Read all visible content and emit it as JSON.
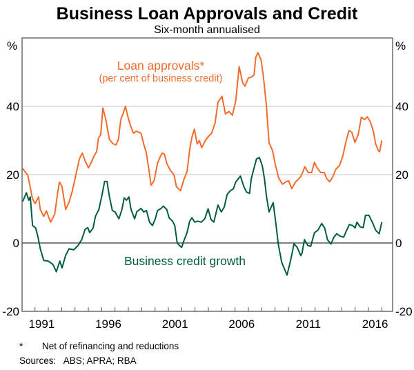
{
  "chart_data": {
    "type": "line",
    "title": "Business Loan Approvals and Credit",
    "subtitle": "Six-month annualised",
    "y_unit_left": "%",
    "y_unit_right": "%",
    "ylim": [
      -20,
      60
    ],
    "yticks": [
      -20,
      0,
      20,
      40
    ],
    "xlim": [
      1990,
      2017.8
    ],
    "xtick_labels": [
      "1991",
      "1996",
      "2001",
      "2006",
      "2011",
      "2016"
    ],
    "grid": true,
    "footnote_marker": "*",
    "footnote": "Net of refinancing and reductions",
    "sources": "Sources:   ABS; APRA; RBA",
    "series": [
      {
        "name": "Loan approvals*",
        "name_sub": "(per cent of business credit)",
        "color": "#f26b2b",
        "points": [
          [
            1990.07,
            21.8
          ],
          [
            1990.45,
            19.9
          ],
          [
            1990.6,
            17.2
          ],
          [
            1990.8,
            13.2
          ],
          [
            1991.0,
            11.5
          ],
          [
            1991.27,
            13.5
          ],
          [
            1991.4,
            9.8
          ],
          [
            1991.65,
            7.8
          ],
          [
            1991.86,
            9.4
          ],
          [
            1992.17,
            6.1
          ],
          [
            1992.48,
            8.4
          ],
          [
            1992.69,
            14.5
          ],
          [
            1992.83,
            17.8
          ],
          [
            1993.03,
            16.5
          ],
          [
            1993.3,
            9.8
          ],
          [
            1993.55,
            11.9
          ],
          [
            1993.8,
            15.2
          ],
          [
            1994.07,
            20.0
          ],
          [
            1994.33,
            24.6
          ],
          [
            1994.55,
            26.3
          ],
          [
            1994.76,
            24.0
          ],
          [
            1995.01,
            22.0
          ],
          [
            1995.19,
            23.3
          ],
          [
            1995.41,
            25.3
          ],
          [
            1995.62,
            26.7
          ],
          [
            1995.76,
            30.7
          ],
          [
            1995.93,
            31.7
          ],
          [
            1996.09,
            39.5
          ],
          [
            1996.31,
            36.2
          ],
          [
            1996.57,
            30.4
          ],
          [
            1996.83,
            29.1
          ],
          [
            1997.08,
            28.7
          ],
          [
            1997.26,
            30.4
          ],
          [
            1997.43,
            36.1
          ],
          [
            1997.6,
            37.8
          ],
          [
            1997.78,
            40.0
          ],
          [
            1997.98,
            36.8
          ],
          [
            1998.16,
            34.4
          ],
          [
            1998.38,
            32.1
          ],
          [
            1998.6,
            32.7
          ],
          [
            1998.95,
            32.1
          ],
          [
            1999.15,
            29.0
          ],
          [
            1999.33,
            26.7
          ],
          [
            1999.5,
            22.6
          ],
          [
            1999.7,
            16.9
          ],
          [
            1999.93,
            18.2
          ],
          [
            2000.19,
            23.3
          ],
          [
            2000.36,
            25.0
          ],
          [
            2000.53,
            26.3
          ],
          [
            2000.71,
            26.0
          ],
          [
            2000.88,
            23.3
          ],
          [
            2001.14,
            21.3
          ],
          [
            2001.43,
            19.9
          ],
          [
            2001.6,
            16.5
          ],
          [
            2001.91,
            15.3
          ],
          [
            2002.17,
            18.6
          ],
          [
            2002.4,
            20.9
          ],
          [
            2002.6,
            27.3
          ],
          [
            2002.77,
            31.0
          ],
          [
            2002.95,
            33.3
          ],
          [
            2003.16,
            29.0
          ],
          [
            2003.33,
            30.0
          ],
          [
            2003.5,
            27.9
          ],
          [
            2003.78,
            30.0
          ],
          [
            2004.0,
            31.2
          ],
          [
            2004.24,
            32.1
          ],
          [
            2004.5,
            35.1
          ],
          [
            2004.72,
            41.2
          ],
          [
            2005.02,
            42.9
          ],
          [
            2005.28,
            37.8
          ],
          [
            2005.54,
            38.5
          ],
          [
            2005.8,
            37.4
          ],
          [
            2006.05,
            41.5
          ],
          [
            2006.31,
            51.6
          ],
          [
            2006.57,
            46.9
          ],
          [
            2006.74,
            45.9
          ],
          [
            2007.0,
            48.3
          ],
          [
            2007.26,
            48.6
          ],
          [
            2007.43,
            49.3
          ],
          [
            2007.55,
            54.3
          ],
          [
            2007.72,
            55.7
          ],
          [
            2007.95,
            53.6
          ],
          [
            2008.12,
            48.9
          ],
          [
            2008.35,
            40.2
          ],
          [
            2008.55,
            29.4
          ],
          [
            2008.81,
            27.0
          ],
          [
            2009.04,
            22.6
          ],
          [
            2009.28,
            18.9
          ],
          [
            2009.55,
            17.2
          ],
          [
            2009.85,
            18.0
          ],
          [
            2010.02,
            18.2
          ],
          [
            2010.25,
            15.9
          ],
          [
            2010.54,
            17.9
          ],
          [
            2010.89,
            19.2
          ],
          [
            2011.1,
            20.9
          ],
          [
            2011.23,
            22.3
          ],
          [
            2011.49,
            20.6
          ],
          [
            2011.74,
            20.6
          ],
          [
            2011.95,
            23.6
          ],
          [
            2012.17,
            21.9
          ],
          [
            2012.43,
            20.6
          ],
          [
            2012.69,
            20.6
          ],
          [
            2012.86,
            18.9
          ],
          [
            2013.09,
            17.9
          ],
          [
            2013.3,
            19.2
          ],
          [
            2013.56,
            21.6
          ],
          [
            2013.82,
            22.6
          ],
          [
            2014.07,
            25.3
          ],
          [
            2014.3,
            29.4
          ],
          [
            2014.54,
            32.9
          ],
          [
            2014.76,
            32.4
          ],
          [
            2014.99,
            29.4
          ],
          [
            2015.23,
            31.7
          ],
          [
            2015.47,
            36.8
          ],
          [
            2015.71,
            36.1
          ],
          [
            2015.92,
            36.9
          ],
          [
            2016.15,
            35.4
          ],
          [
            2016.37,
            32.7
          ],
          [
            2016.54,
            29.0
          ],
          [
            2016.75,
            27.0
          ],
          [
            2016.84,
            26.7
          ],
          [
            2017.0,
            30.0
          ]
        ]
      },
      {
        "name": "Business credit growth",
        "color": "#005b45",
        "points": [
          [
            1990.07,
            12.1
          ],
          [
            1990.36,
            14.7
          ],
          [
            1990.53,
            12.5
          ],
          [
            1990.65,
            13.5
          ],
          [
            1990.82,
            5.1
          ],
          [
            1991.05,
            4.4
          ],
          [
            1991.22,
            1.8
          ],
          [
            1991.4,
            -1.7
          ],
          [
            1991.65,
            -5.1
          ],
          [
            1992.0,
            -5.3
          ],
          [
            1992.35,
            -6.3
          ],
          [
            1992.6,
            -8.4
          ],
          [
            1992.86,
            -5.3
          ],
          [
            1993.03,
            -7.3
          ],
          [
            1993.29,
            -3.7
          ],
          [
            1993.55,
            -1.7
          ],
          [
            1993.9,
            -2.0
          ],
          [
            1994.24,
            -0.7
          ],
          [
            1994.5,
            1.0
          ],
          [
            1994.76,
            4.0
          ],
          [
            1994.96,
            4.5
          ],
          [
            1995.1,
            3.0
          ],
          [
            1995.36,
            4.4
          ],
          [
            1995.53,
            7.8
          ],
          [
            1995.79,
            9.8
          ],
          [
            1996.05,
            14.5
          ],
          [
            1996.22,
            18.0
          ],
          [
            1996.4,
            18.0
          ],
          [
            1996.57,
            13.8
          ],
          [
            1996.8,
            9.5
          ],
          [
            1997.0,
            9.1
          ],
          [
            1997.29,
            7.1
          ],
          [
            1997.52,
            9.8
          ],
          [
            1997.69,
            13.2
          ],
          [
            1997.86,
            12.5
          ],
          [
            1998.04,
            13.5
          ],
          [
            1998.2,
            9.8
          ],
          [
            1998.47,
            7.1
          ],
          [
            1998.64,
            9.2
          ],
          [
            1998.95,
            10.1
          ],
          [
            1999.15,
            9.1
          ],
          [
            1999.36,
            9.5
          ],
          [
            1999.59,
            6.1
          ],
          [
            1999.81,
            5.1
          ],
          [
            2000.02,
            7.1
          ],
          [
            2000.19,
            9.5
          ],
          [
            2000.45,
            10.1
          ],
          [
            2000.62,
            10.8
          ],
          [
            2000.88,
            9.8
          ],
          [
            2001.05,
            7.4
          ],
          [
            2001.31,
            6.4
          ],
          [
            2001.48,
            5.1
          ],
          [
            2001.66,
            0.0
          ],
          [
            2001.83,
            -0.7
          ],
          [
            2002.0,
            -1.3
          ],
          [
            2002.17,
            0.7
          ],
          [
            2002.4,
            3.0
          ],
          [
            2002.6,
            6.4
          ],
          [
            2002.77,
            7.4
          ],
          [
            2002.98,
            6.1
          ],
          [
            2003.21,
            6.4
          ],
          [
            2003.47,
            6.1
          ],
          [
            2003.73,
            7.1
          ],
          [
            2003.98,
            10.0
          ],
          [
            2004.2,
            6.8
          ],
          [
            2004.41,
            6.1
          ],
          [
            2004.72,
            11.1
          ],
          [
            2004.97,
            9.1
          ],
          [
            2005.19,
            10.5
          ],
          [
            2005.41,
            14.2
          ],
          [
            2005.62,
            15.2
          ],
          [
            2005.88,
            15.9
          ],
          [
            2006.05,
            17.8
          ],
          [
            2006.4,
            19.6
          ],
          [
            2006.66,
            16.5
          ],
          [
            2006.86,
            14.9
          ],
          [
            2007.09,
            14.5
          ],
          [
            2007.21,
            18.6
          ],
          [
            2007.38,
            21.3
          ],
          [
            2007.61,
            24.6
          ],
          [
            2007.83,
            25.0
          ],
          [
            2008.04,
            22.6
          ],
          [
            2008.21,
            18.6
          ],
          [
            2008.35,
            13.8
          ],
          [
            2008.55,
            9.1
          ],
          [
            2008.86,
            11.8
          ],
          [
            2009.04,
            6.4
          ],
          [
            2009.24,
            -0.3
          ],
          [
            2009.5,
            -5.7
          ],
          [
            2009.9,
            -9.4
          ],
          [
            2010.19,
            -4.7
          ],
          [
            2010.42,
            -0.2
          ],
          [
            2010.66,
            -1.3
          ],
          [
            2010.93,
            -3.7
          ],
          [
            2011.02,
            -3.0
          ],
          [
            2011.2,
            1.0
          ],
          [
            2011.45,
            -0.7
          ],
          [
            2011.67,
            -1.0
          ],
          [
            2011.95,
            3.0
          ],
          [
            2012.2,
            3.7
          ],
          [
            2012.5,
            5.7
          ],
          [
            2012.72,
            4.4
          ],
          [
            2012.93,
            1.0
          ],
          [
            2013.19,
            -0.3
          ],
          [
            2013.41,
            1.7
          ],
          [
            2013.62,
            2.7
          ],
          [
            2013.88,
            2.0
          ],
          [
            2014.14,
            1.7
          ],
          [
            2014.4,
            4.0
          ],
          [
            2014.57,
            5.4
          ],
          [
            2014.83,
            5.1
          ],
          [
            2015.0,
            4.4
          ],
          [
            2015.14,
            6.1
          ],
          [
            2015.38,
            4.7
          ],
          [
            2015.61,
            4.5
          ],
          [
            2015.78,
            8.1
          ],
          [
            2016.04,
            8.1
          ],
          [
            2016.29,
            6.1
          ],
          [
            2016.55,
            3.7
          ],
          [
            2016.81,
            2.7
          ],
          [
            2017.0,
            6.1
          ]
        ]
      }
    ]
  }
}
